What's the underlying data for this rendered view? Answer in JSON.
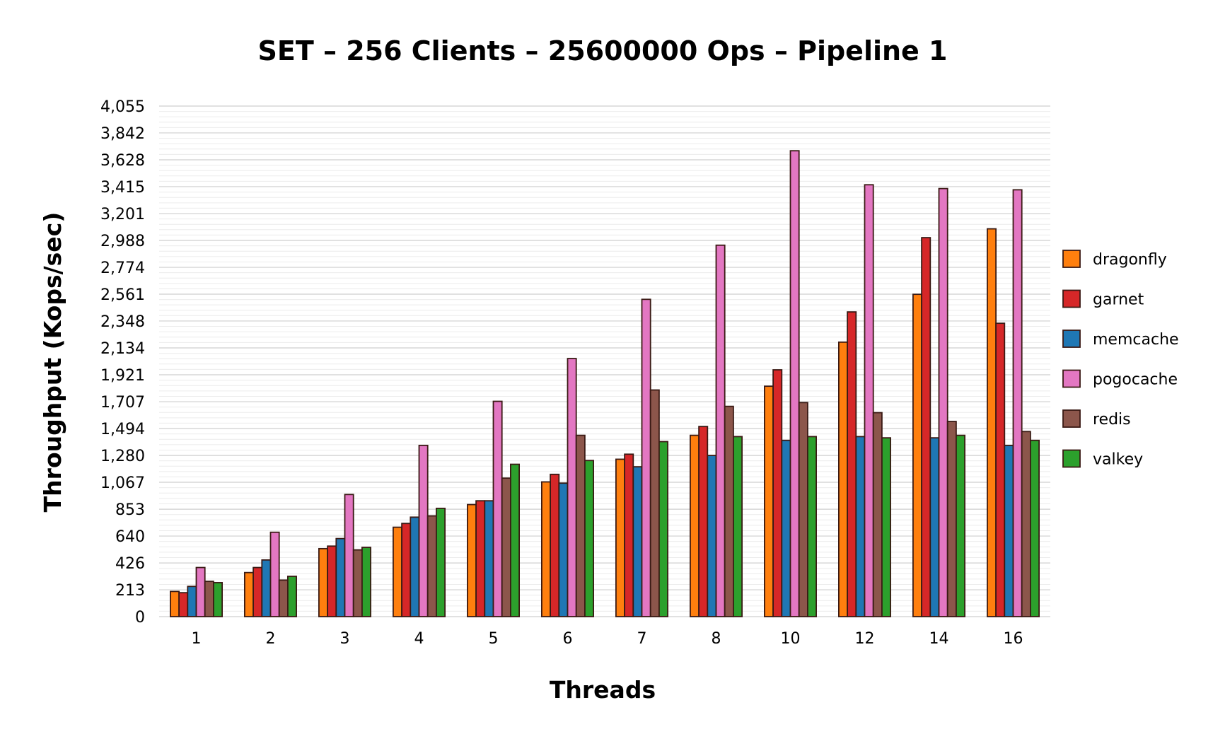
{
  "chart_data": {
    "type": "bar",
    "title": "SET – 256 Clients – 25600000 Ops – Pipeline 1",
    "xlabel": "Threads",
    "ylabel": "Throughput (Kops/sec)",
    "ylim": [
      0,
      4055
    ],
    "yticks": [
      0,
      213,
      426,
      640,
      853,
      1067,
      1280,
      1494,
      1707,
      1921,
      2134,
      2348,
      2561,
      2774,
      2988,
      3201,
      3415,
      3628,
      3842,
      4055
    ],
    "ytick_labels": [
      "0",
      "213",
      "426",
      "640",
      "853",
      "1,067",
      "1,280",
      "1,494",
      "1,707",
      "1,921",
      "2,134",
      "2,348",
      "2,561",
      "2,774",
      "2,988",
      "3,201",
      "3,415",
      "3,628",
      "3,842",
      "4,055"
    ],
    "grid": true,
    "legend_position": "right",
    "categories": [
      "1",
      "2",
      "3",
      "4",
      "5",
      "6",
      "7",
      "8",
      "10",
      "12",
      "14",
      "16"
    ],
    "series": [
      {
        "name": "dragonfly",
        "color": "#ff7f0e",
        "values": [
          200,
          350,
          540,
          710,
          890,
          1070,
          1250,
          1440,
          1830,
          2180,
          2560,
          3080
        ]
      },
      {
        "name": "garnet",
        "color": "#d62728",
        "values": [
          190,
          390,
          560,
          740,
          920,
          1130,
          1290,
          1510,
          1960,
          2420,
          3010,
          2330
        ]
      },
      {
        "name": "memcache",
        "color": "#1f77b4",
        "values": [
          240,
          450,
          620,
          790,
          920,
          1060,
          1190,
          1280,
          1400,
          1430,
          1420,
          1360
        ]
      },
      {
        "name": "pogocache",
        "color": "#e377c2",
        "values": [
          390,
          670,
          970,
          1360,
          1710,
          2050,
          2520,
          2950,
          3700,
          3430,
          3400,
          3390
        ]
      },
      {
        "name": "redis",
        "color": "#8c564b",
        "values": [
          280,
          290,
          530,
          800,
          1100,
          1440,
          1800,
          1670,
          1700,
          1620,
          1550,
          1470
        ]
      },
      {
        "name": "valkey",
        "color": "#2ca02c",
        "values": [
          270,
          320,
          550,
          860,
          1210,
          1240,
          1390,
          1430,
          1430,
          1420,
          1440,
          1400
        ]
      }
    ]
  }
}
